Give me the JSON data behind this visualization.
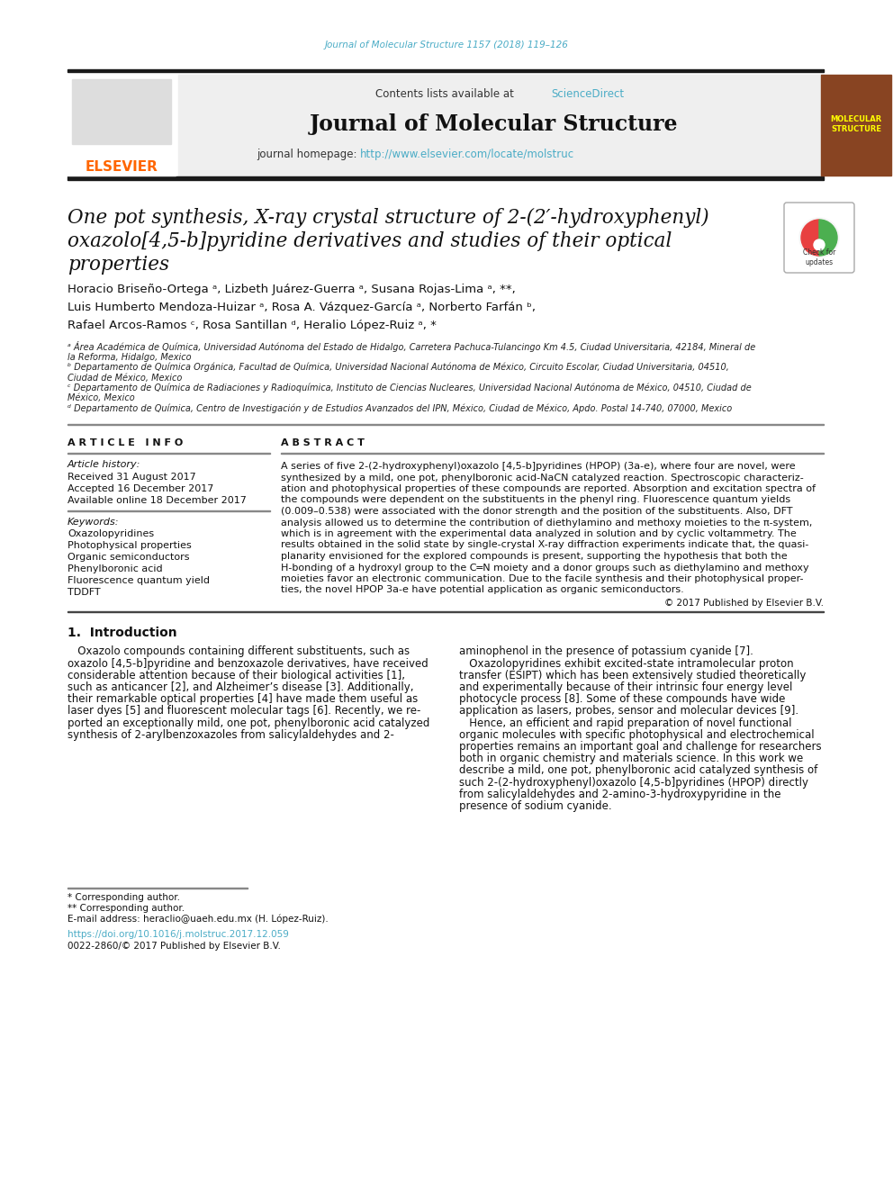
{
  "bg_color": "#ffffff",
  "journal_ref": "Journal of Molecular Structure 1157 (2018) 119–126",
  "journal_ref_color": "#4bacc6",
  "header_bg": "#efefef",
  "contents_text": "Contents lists available at ",
  "sciencedirect_text": "ScienceDirect",
  "sciencedirect_color": "#4bacc6",
  "journal_title": "Journal of Molecular Structure",
  "homepage_label": "journal homepage: ",
  "homepage_url": "http://www.elsevier.com/locate/molstruc",
  "homepage_url_color": "#4bacc6",
  "thick_bar_color": "#1a1a1a",
  "article_title_line1": "One pot synthesis, X-ray crystal structure of 2-(2′-hydroxyphenyl)",
  "article_title_line2": "oxazolo[4,5-b]pyridine derivatives and studies of their optical",
  "article_title_line3": "properties",
  "author_line1": "Horacio Briseño-Ortega ᵃ, Lizbeth Juárez-Guerra ᵃ, Susana Rojas-Lima ᵃ, **,",
  "author_line2": "Luis Humberto Mendoza-Huizar ᵃ, Rosa A. Vázquez-García ᵃ, Norberto Farfán ᵇ,",
  "author_line3": "Rafael Arcos-Ramos ᶜ, Rosa Santillan ᵈ, Heralio López-Ruiz ᵃ, *",
  "affil_lines": [
    "ᵃ Área Académica de Química, Universidad Autónoma del Estado de Hidalgo, Carretera Pachuca-Tulancingo Km 4.5, Ciudad Universitaria, 42184, Mineral de",
    "la Reforma, Hidalgo, Mexico",
    "ᵇ Departamento de Química Orgánica, Facultad de Química, Universidad Nacional Autónoma de México, Circuito Escolar, Ciudad Universitaria, 04510,",
    "Ciudad de México, Mexico",
    "ᶜ Departamento de Química de Radiaciones y Radioquímica, Instituto de Ciencias Nucleares, Universidad Nacional Autónoma de México, 04510, Ciudad de",
    "México, Mexico",
    "ᵈ Departamento de Química, Centro de Investigación y de Estudios Avanzados del IPN, México, Ciudad de México, Apdo. Postal 14-740, 07000, Mexico"
  ],
  "article_info_title": "A R T I C L E   I N F O",
  "article_history_label": "Article history:",
  "received": "Received 31 August 2017",
  "accepted": "Accepted 16 December 2017",
  "available": "Available online 18 December 2017",
  "keywords_label": "Keywords:",
  "keywords": [
    "Oxazolopyridines",
    "Photophysical properties",
    "Organic semiconductors",
    "Phenylboronic acid",
    "Fluorescence quantum yield",
    "TDDFT"
  ],
  "abstract_title": "A B S T R A C T",
  "abstract_lines": [
    "A series of five 2-(2-hydroxyphenyl)oxazolo [4,5-b]pyridines (HPOP) (3a-e), where four are novel, were",
    "synthesized by a mild, one pot, phenylboronic acid-NaCN catalyzed reaction. Spectroscopic characteriz-",
    "ation and photophysical properties of these compounds are reported. Absorption and excitation spectra of",
    "the compounds were dependent on the substituents in the phenyl ring. Fluorescence quantum yields",
    "(0.009–0.538) were associated with the donor strength and the position of the substituents. Also, DFT",
    "analysis allowed us to determine the contribution of diethylamino and methoxy moieties to the π-system,",
    "which is in agreement with the experimental data analyzed in solution and by cyclic voltammetry. The",
    "results obtained in the solid state by single-crystal X-ray diffraction experiments indicate that, the quasi-",
    "planarity envisioned for the explored compounds is present, supporting the hypothesis that both the",
    "H-bonding of a hydroxyl group to the C═N moiety and a donor groups such as diethylamino and methoxy",
    "moieties favor an electronic communication. Due to the facile synthesis and their photophysical proper-",
    "ties, the novel HPOP 3a-e have potential application as organic semiconductors."
  ],
  "copyright": "© 2017 Published by Elsevier B.V.",
  "intro_heading": "1.  Introduction",
  "intro_col1_lines": [
    "   Oxazolo compounds containing different substituents, such as",
    "oxazolo [4,5-b]pyridine and benzoxazole derivatives, have received",
    "considerable attention because of their biological activities [1],",
    "such as anticancer [2], and Alzheimer’s disease [3]. Additionally,",
    "their remarkable optical properties [4] have made them useful as",
    "laser dyes [5] and fluorescent molecular tags [6]. Recently, we re-",
    "ported an exceptionally mild, one pot, phenylboronic acid catalyzed",
    "synthesis of 2-arylbenzoxazoles from salicylaldehydes and 2-"
  ],
  "intro_col2_lines": [
    "aminophenol in the presence of potassium cyanide [7].",
    "   Oxazolopyridines exhibit excited-state intramolecular proton",
    "transfer (ESIPT) which has been extensively studied theoretically",
    "and experimentally because of their intrinsic four energy level",
    "photocycle process [8]. Some of these compounds have wide",
    "application as lasers, probes, sensor and molecular devices [9].",
    "   Hence, an efficient and rapid preparation of novel functional",
    "organic molecules with specific photophysical and electrochemical",
    "properties remains an important goal and challenge for researchers",
    "both in organic chemistry and materials science. In this work we",
    "describe a mild, one pot, phenylboronic acid catalyzed synthesis of",
    "such 2-(2-hydroxyphenyl)oxazolo [4,5-b]pyridines (HPOP) directly",
    "from salicylaldehydes and 2-amino-3-hydroxypyridine in the",
    "presence of sodium cyanide."
  ],
  "footnote1": "* Corresponding author.",
  "footnote2": "** Corresponding author.",
  "footnote3": "E-mail address: heraclio@uaeh.edu.mx (H. López-Ruiz).",
  "doi": "https://doi.org/10.1016/j.molstruc.2017.12.059",
  "issn": "0022-2860/© 2017 Published by Elsevier B.V."
}
